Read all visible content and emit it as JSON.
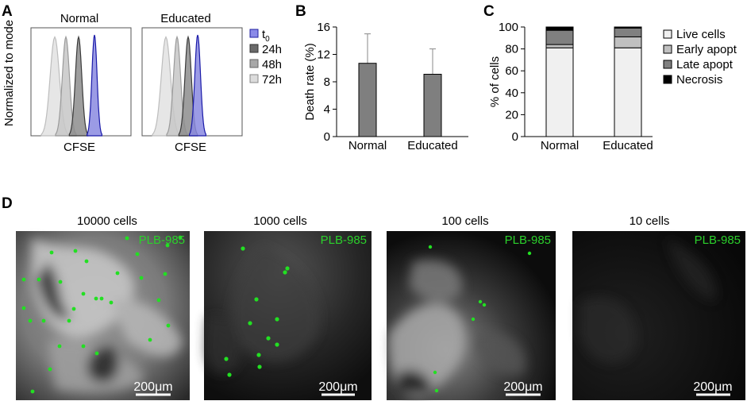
{
  "panels": {
    "A": "A",
    "B": "B",
    "C": "C",
    "D": "D"
  },
  "chart_data": [
    {
      "id": "A",
      "type": "area",
      "ylabel": "Normalized to mode",
      "subplots": [
        {
          "title": "Normal",
          "xlabel": "CFSE"
        },
        {
          "title": "Educated",
          "xlabel": "CFSE"
        }
      ],
      "legend": {
        "position": "right",
        "entries": [
          {
            "label": "t",
            "sub": "0",
            "color": "#3b3fc9"
          },
          {
            "label": "24h",
            "color": "#555555"
          },
          {
            "label": "48h",
            "color": "#9c9c9c"
          },
          {
            "label": "72h",
            "color": "#cfcfcf"
          }
        ]
      }
    },
    {
      "id": "B",
      "type": "bar",
      "ylabel": "Death rate (%)",
      "ylim": [
        0,
        16
      ],
      "yticks": [
        0,
        4,
        8,
        12,
        16
      ],
      "categories": [
        "Normal",
        "Educated"
      ],
      "values": [
        10.7,
        9.1
      ],
      "error_upper": [
        15.0,
        12.8
      ],
      "color": "#7f7f7f"
    },
    {
      "id": "C",
      "type": "bar",
      "stacked": true,
      "ylabel": "% of cells",
      "ylim": [
        0,
        100
      ],
      "yticks": [
        0,
        20,
        40,
        60,
        80,
        100
      ],
      "categories": [
        "Normal",
        "Educated"
      ],
      "series": [
        {
          "name": "Live cells",
          "values": [
            81,
            81
          ],
          "color": "#f0f0f0"
        },
        {
          "name": "Early apopt",
          "values": [
            3,
            10
          ],
          "color": "#c0c0c0"
        },
        {
          "name": "Late apopt",
          "values": [
            13,
            8
          ],
          "color": "#808080"
        },
        {
          "name": "Necrosis",
          "values": [
            3,
            1
          ],
          "color": "#000000"
        }
      ],
      "legend": {
        "position": "right"
      }
    }
  ],
  "micrographs": {
    "label": "PLB-985",
    "scale": "200μm",
    "titles": [
      "10000 cells",
      "1000 cells",
      "100 cells",
      "10 cells"
    ]
  }
}
